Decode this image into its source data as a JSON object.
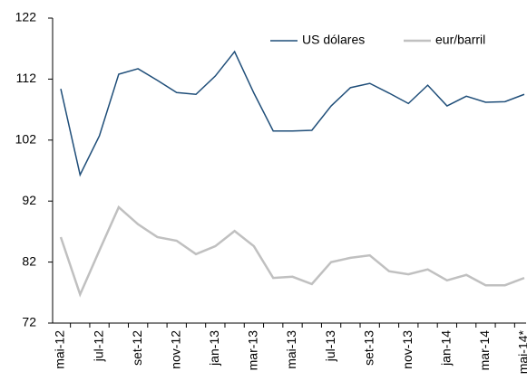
{
  "chart_data": {
    "type": "line",
    "categories": [
      "mai-12",
      null,
      "jul-12",
      null,
      "set-12",
      null,
      "nov-12",
      null,
      "jan-13",
      null,
      "mar-13",
      null,
      "mai-13",
      null,
      "jul-13",
      null,
      "set-13",
      null,
      "nov-13",
      null,
      "jan-14",
      null,
      "mar-14",
      null,
      "mai-14*"
    ],
    "series": [
      {
        "name": "US dólares",
        "color": "#1f4e79",
        "values": [
          110.4,
          96.3,
          102.7,
          112.8,
          113.7,
          111.8,
          109.8,
          109.5,
          112.5,
          116.5,
          109.7,
          103.5,
          103.5,
          103.6,
          107.6,
          110.6,
          111.3,
          109.7,
          108.0,
          111.0,
          107.6,
          109.2,
          108.2,
          108.3,
          109.5
        ]
      },
      {
        "name": "eur/barril",
        "color": "#c0c0c0",
        "values": [
          86.1,
          76.7,
          83.9,
          91.0,
          88.2,
          86.1,
          85.5,
          83.3,
          84.6,
          87.1,
          84.6,
          79.4,
          79.6,
          78.4,
          82.0,
          82.7,
          83.1,
          80.5,
          80.0,
          80.8,
          79.0,
          79.9,
          78.2,
          78.2,
          79.4
        ]
      }
    ],
    "ylim": [
      72,
      122
    ],
    "yticks": [
      72,
      82,
      92,
      102,
      112,
      122
    ],
    "legend": "top-right"
  }
}
